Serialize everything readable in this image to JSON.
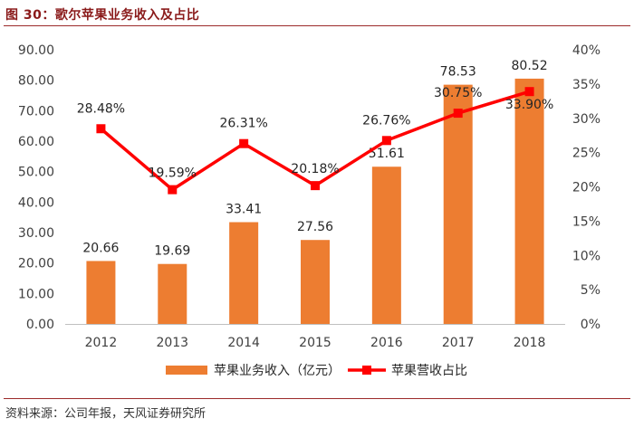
{
  "header": {
    "title": "图 30：歌尔苹果业务收入及占比"
  },
  "footer": {
    "source": "资料来源：公司年报，天风证券研究所"
  },
  "colors": {
    "bar": "#ED7D31",
    "line": "#FF0000",
    "accent": "#9C2A2A"
  },
  "chart_data": {
    "type": "bar+line",
    "title": "歌尔苹果业务收入及占比",
    "categories": [
      "2012",
      "2013",
      "2014",
      "2015",
      "2016",
      "2017",
      "2018"
    ],
    "series": [
      {
        "name": "苹果业务收入（亿元）",
        "type": "bar",
        "axis": "left",
        "values": [
          20.66,
          19.69,
          33.41,
          27.56,
          51.61,
          78.53,
          80.52
        ],
        "labels": [
          "20.66",
          "19.69",
          "33.41",
          "27.56",
          "51.61",
          "78.53",
          "80.52"
        ]
      },
      {
        "name": "苹果营收占比",
        "type": "line",
        "axis": "right",
        "values": [
          28.48,
          19.59,
          26.31,
          20.18,
          26.76,
          30.75,
          33.9
        ],
        "labels": [
          "28.48%",
          "19.59%",
          "26.31%",
          "20.18%",
          "26.76%",
          "30.75%",
          "33.90%"
        ]
      }
    ],
    "y_left": {
      "min": 0,
      "max": 90,
      "step": 10,
      "ticks": [
        "0.00",
        "10.00",
        "20.00",
        "30.00",
        "40.00",
        "50.00",
        "60.00",
        "70.00",
        "80.00",
        "90.00"
      ]
    },
    "y_right": {
      "min": 0,
      "max": 40,
      "step": 5,
      "ticks": [
        "0%",
        "5%",
        "10%",
        "15%",
        "20%",
        "25%",
        "30%",
        "35%",
        "40%"
      ]
    },
    "grid": false,
    "legend_position": "bottom"
  }
}
